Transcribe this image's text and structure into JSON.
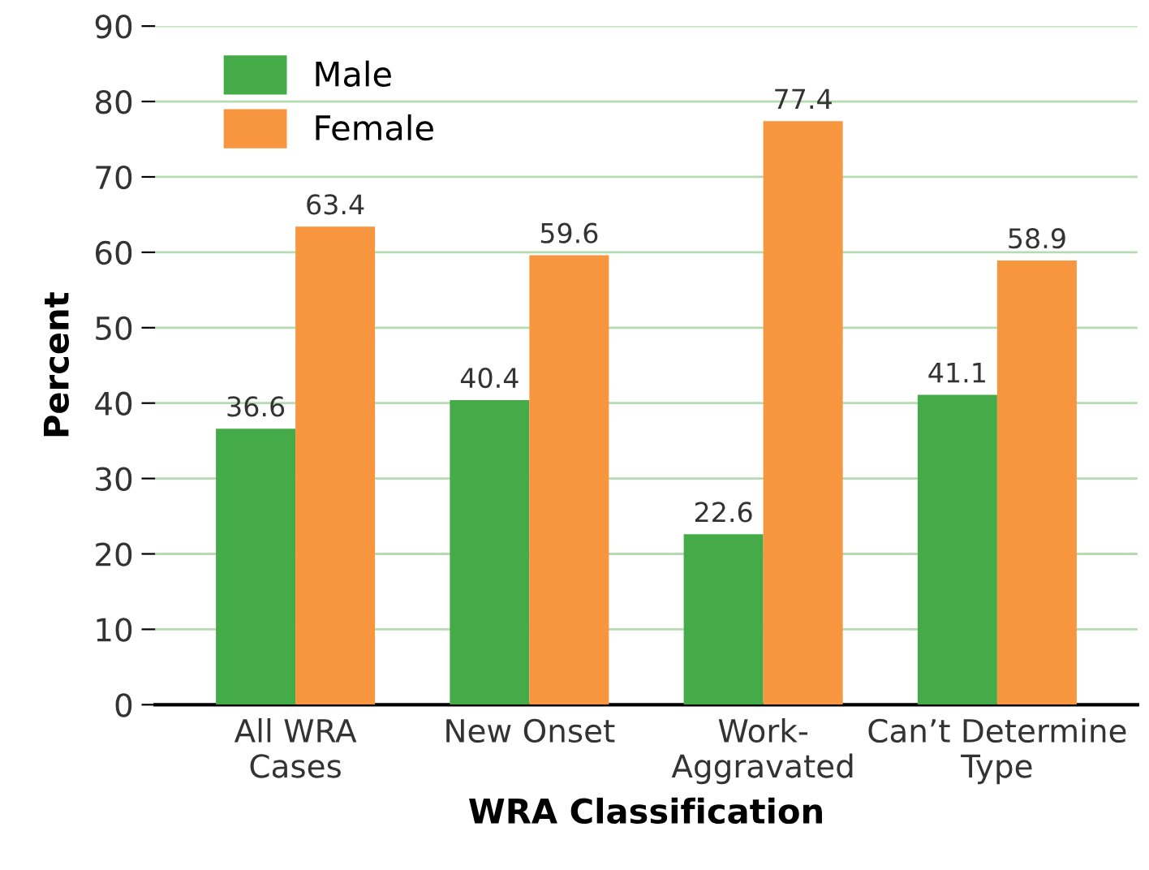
{
  "chart_data": {
    "type": "bar",
    "xlabel": "WRA Classification",
    "ylabel": "Percent",
    "categories": [
      "All WRA\nCases",
      "New Onset",
      "Work-\nAggravated",
      "Can’t Determine\nType"
    ],
    "series": [
      {
        "name": "Male",
        "color": "#44ab48",
        "values": [
          36.6,
          40.4,
          22.6,
          41.1
        ]
      },
      {
        "name": "Female",
        "color": "#f7963f",
        "values": [
          63.4,
          59.6,
          77.4,
          58.9
        ]
      }
    ],
    "ylim": [
      0,
      90
    ],
    "yticks": [
      0,
      10,
      20,
      30,
      40,
      50,
      60,
      70,
      80,
      90
    ],
    "grid": "y",
    "legend": "top left",
    "data_labels": true
  }
}
